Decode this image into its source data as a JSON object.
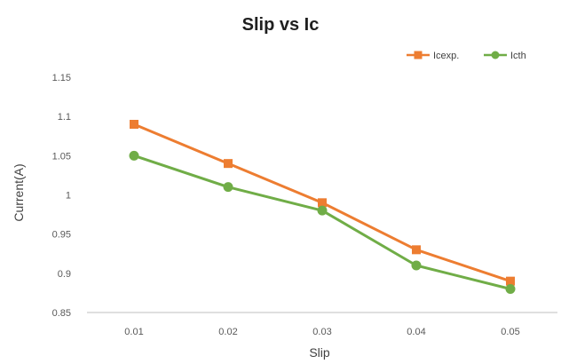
{
  "chart_data": {
    "type": "line",
    "title": "Slip vs Ic",
    "xlabel": "Slip",
    "ylabel": "Current(A)",
    "categories": [
      "0.01",
      "0.02",
      "0.03",
      "0.04",
      "0.05"
    ],
    "ylim": [
      0.85,
      1.15
    ],
    "yticks": [
      "0.85",
      "0.9",
      "0.95",
      "1",
      "1.05",
      "1.1",
      "1.15"
    ],
    "grid": false,
    "legend_position": "top-right",
    "series": [
      {
        "name": "Icexp.",
        "marker": "square",
        "color": "#ED7D31",
        "values": [
          1.09,
          1.04,
          0.99,
          0.93,
          0.89
        ]
      },
      {
        "name": "Icth",
        "marker": "circle",
        "color": "#70AD47",
        "values": [
          1.05,
          1.01,
          0.98,
          0.91,
          0.88
        ]
      }
    ]
  }
}
